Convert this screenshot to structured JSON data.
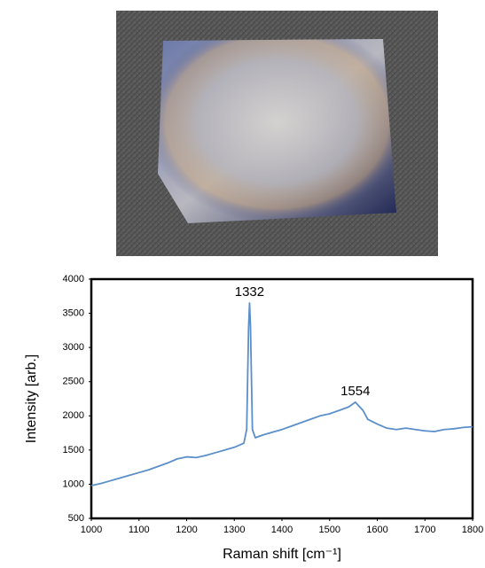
{
  "chart_data": {
    "type": "line",
    "x_label": "Raman shift [cm⁻¹]",
    "y_label": "Intensity [arb.]",
    "x": [
      1000,
      1020,
      1040,
      1060,
      1080,
      1100,
      1120,
      1140,
      1160,
      1180,
      1200,
      1220,
      1240,
      1260,
      1280,
      1300,
      1320,
      1326,
      1330,
      1332,
      1334,
      1338,
      1344,
      1360,
      1380,
      1400,
      1420,
      1440,
      1460,
      1480,
      1500,
      1520,
      1540,
      1554,
      1570,
      1580,
      1600,
      1620,
      1640,
      1660,
      1680,
      1700,
      1720,
      1740,
      1760,
      1780,
      1800
    ],
    "series": [
      {
        "color": "#5b8fc9",
        "values": [
          980,
          1010,
          1050,
          1090,
          1130,
          1170,
          1210,
          1260,
          1310,
          1370,
          1400,
          1390,
          1420,
          1460,
          1500,
          1540,
          1600,
          1800,
          3300,
          3650,
          3300,
          1800,
          1680,
          1720,
          1760,
          1800,
          1850,
          1900,
          1950,
          2000,
          2030,
          2080,
          2130,
          2200,
          2080,
          1950,
          1880,
          1820,
          1800,
          1820,
          1800,
          1780,
          1770,
          1800,
          1810,
          1830,
          1840
        ]
      }
    ],
    "annotations": [
      {
        "label": "1332",
        "x": 1332
      },
      {
        "label": "1554",
        "x": 1554
      }
    ],
    "xlim": [
      1000,
      1800
    ],
    "xticks": [
      1000,
      1100,
      1200,
      1300,
      1400,
      1500,
      1600,
      1700,
      1800
    ],
    "ylim": [
      500,
      4000
    ],
    "yticks": [
      500,
      1000,
      1500,
      2000,
      2500,
      3000,
      3500,
      4000
    ],
    "grid": false
  }
}
